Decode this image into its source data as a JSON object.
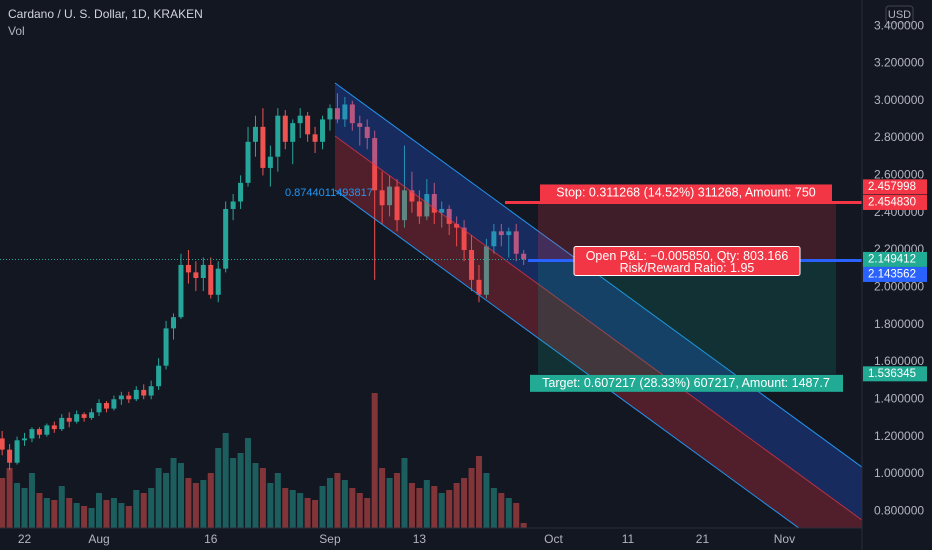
{
  "header": {
    "title": "Cardano / U. S. Dollar, 1D, KRAKEN",
    "indicator": "Vol",
    "currency": "USD"
  },
  "chart_data": {
    "type": "candlestick",
    "x": [
      -3,
      -2,
      -1,
      0,
      1,
      2,
      3,
      4,
      5,
      6,
      7,
      8,
      9,
      10,
      11,
      12,
      13,
      14,
      15,
      16,
      17,
      18,
      19,
      20,
      21,
      22,
      23,
      24,
      25,
      26,
      27,
      28,
      29,
      30,
      31,
      32,
      33,
      34,
      35,
      36,
      37,
      38,
      39,
      40,
      41,
      42,
      43,
      44,
      45,
      46,
      47,
      48,
      49,
      50,
      51,
      52,
      53,
      54,
      55,
      56,
      57,
      58,
      59,
      60,
      61,
      62,
      63,
      64,
      65,
      66,
      67
    ],
    "open": [
      1.19,
      1.13,
      1.06,
      1.18,
      1.19,
      1.24,
      1.21,
      1.26,
      1.24,
      1.3,
      1.28,
      1.32,
      1.3,
      1.33,
      1.38,
      1.35,
      1.4,
      1.42,
      1.4,
      1.45,
      1.42,
      1.47,
      1.58,
      1.78,
      1.84,
      2.12,
      2.08,
      2.05,
      2.12,
      1.96,
      2.1,
      2.42,
      2.46,
      2.56,
      2.78,
      2.86,
      2.64,
      2.7,
      2.92,
      2.78,
      2.88,
      2.92,
      2.82,
      2.78,
      2.9,
      2.96,
      2.9,
      2.98,
      2.88,
      2.86,
      2.8,
      2.52,
      2.44,
      2.54,
      2.36,
      2.52,
      2.46,
      2.38,
      2.5,
      2.4,
      2.42,
      2.34,
      2.32,
      2.2,
      2.04,
      1.96,
      2.22,
      2.3,
      2.28,
      2.3,
      2.18
    ],
    "high": [
      1.23,
      1.16,
      1.2,
      1.22,
      1.25,
      1.25,
      1.27,
      1.28,
      1.32,
      1.33,
      1.34,
      1.33,
      1.35,
      1.4,
      1.39,
      1.42,
      1.44,
      1.44,
      1.47,
      1.48,
      1.5,
      1.62,
      1.82,
      1.86,
      2.18,
      2.2,
      2.14,
      2.16,
      2.16,
      2.14,
      2.46,
      2.5,
      2.6,
      2.86,
      2.92,
      2.96,
      2.76,
      2.96,
      2.95,
      2.9,
      2.96,
      2.94,
      2.86,
      2.92,
      2.98,
      3.04,
      3.02,
      3.0,
      2.92,
      2.9,
      2.84,
      2.62,
      2.6,
      2.58,
      2.76,
      2.62,
      2.52,
      2.58,
      2.56,
      2.46,
      2.44,
      2.38,
      2.36,
      2.28,
      2.12,
      2.26,
      2.34,
      2.34,
      2.32,
      2.34,
      2.2
    ],
    "low": [
      1.1,
      1.02,
      1.05,
      1.15,
      1.17,
      1.19,
      1.2,
      1.22,
      1.23,
      1.25,
      1.27,
      1.28,
      1.29,
      1.31,
      1.33,
      1.34,
      1.37,
      1.38,
      1.39,
      1.4,
      1.4,
      1.45,
      1.56,
      1.72,
      1.83,
      2.02,
      1.98,
      1.98,
      1.94,
      1.92,
      2.08,
      2.36,
      2.42,
      2.54,
      2.7,
      2.6,
      2.54,
      2.62,
      2.74,
      2.66,
      2.8,
      2.78,
      2.72,
      2.74,
      2.84,
      2.88,
      2.86,
      2.84,
      2.76,
      2.74,
      2.04,
      2.34,
      2.38,
      2.3,
      2.32,
      2.4,
      2.34,
      2.36,
      2.34,
      2.32,
      2.28,
      2.22,
      2.14,
      1.98,
      1.92,
      1.94,
      2.18,
      2.22,
      2.16,
      2.14,
      2.12
    ],
    "close": [
      1.13,
      1.06,
      1.18,
      1.19,
      1.24,
      1.21,
      1.26,
      1.24,
      1.3,
      1.28,
      1.32,
      1.3,
      1.33,
      1.38,
      1.35,
      1.4,
      1.42,
      1.4,
      1.45,
      1.42,
      1.47,
      1.58,
      1.78,
      1.84,
      2.12,
      2.08,
      2.05,
      2.12,
      1.96,
      2.1,
      2.42,
      2.46,
      2.56,
      2.78,
      2.86,
      2.64,
      2.7,
      2.92,
      2.78,
      2.88,
      2.92,
      2.82,
      2.78,
      2.9,
      2.96,
      2.9,
      2.98,
      2.88,
      2.86,
      2.8,
      2.52,
      2.44,
      2.54,
      2.36,
      2.52,
      2.46,
      2.38,
      2.5,
      2.4,
      2.42,
      2.34,
      2.32,
      2.2,
      2.04,
      1.96,
      2.22,
      2.3,
      2.28,
      2.3,
      2.18,
      2.15
    ],
    "volume": [
      50,
      60,
      45,
      40,
      55,
      35,
      30,
      28,
      42,
      30,
      25,
      22,
      20,
      35,
      28,
      30,
      25,
      22,
      38,
      35,
      40,
      60,
      55,
      70,
      65,
      50,
      45,
      48,
      55,
      80,
      95,
      70,
      75,
      90,
      65,
      60,
      45,
      55,
      40,
      38,
      35,
      30,
      28,
      42,
      50,
      55,
      48,
      40,
      35,
      30,
      135,
      60,
      50,
      55,
      70,
      45,
      40,
      48,
      42,
      35,
      38,
      45,
      50,
      60,
      72,
      55,
      40,
      35,
      30,
      25,
      5
    ],
    "up_color": "#26a69a",
    "down_color": "#ef5350",
    "ylim": [
      0.71,
      3.54
    ],
    "yticks": [
      {
        "value": 0.8,
        "label": "0.800000"
      },
      {
        "value": 1.0,
        "label": "1.000000"
      },
      {
        "value": 1.2,
        "label": "1.200000"
      },
      {
        "value": 1.4,
        "label": "1.400000"
      },
      {
        "value": 1.6,
        "label": "1.600000"
      },
      {
        "value": 1.8,
        "label": "1.800000"
      },
      {
        "value": 2.0,
        "label": "2.000000"
      },
      {
        "value": 2.2,
        "label": "2.200000"
      },
      {
        "value": 2.4,
        "label": "2.400000"
      },
      {
        "value": 2.6,
        "label": "2.600000"
      },
      {
        "value": 2.8,
        "label": "2.800000"
      },
      {
        "value": 3.0,
        "label": "3.000000"
      },
      {
        "value": 3.2,
        "label": "3.200000"
      },
      {
        "value": 3.4,
        "label": "3.400000"
      }
    ],
    "xlim": [
      -3.29,
      112.41
    ],
    "xticks": [
      {
        "value": 0,
        "label": "22"
      },
      {
        "value": 10,
        "label": "Aug"
      },
      {
        "value": 25,
        "label": "16"
      },
      {
        "value": 41,
        "label": "Sep"
      },
      {
        "value": 53,
        "label": "13"
      },
      {
        "value": 71,
        "label": "Oct"
      },
      {
        "value": 81,
        "label": "11"
      },
      {
        "value": 91,
        "label": "21"
      },
      {
        "value": 102,
        "label": "Nov"
      }
    ],
    "axis_labels": [
      {
        "value": 2.457998,
        "color": "#f23645"
      },
      {
        "value": 2.45483,
        "label": "2.454830",
        "color": "#f23645"
      },
      {
        "value": 2.149412,
        "color": "#22ab94"
      },
      {
        "value": 2.143562,
        "color": "#2962ff"
      },
      {
        "value": 1.536345,
        "color": "#22ab94"
      }
    ],
    "channel_label": "0.8744011493817",
    "position": {
      "stop_text": "Stop: 0.311268 (14.52%) 311268, Amount: 750",
      "pnl_text": "Open P&L: −0.005850, Qty: 803.166",
      "ratio_text": "Risk/Reward Ratio: 1.95",
      "target_text": "Target: 0.607217 (28.33%) 607217, Amount: 1487.7"
    }
  }
}
